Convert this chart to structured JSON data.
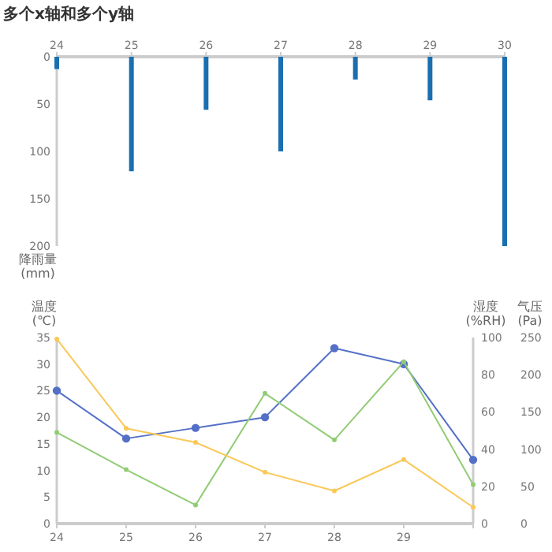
{
  "chart_data": [
    {
      "type": "bar",
      "title": "多个x轴和多个y轴",
      "x": [
        24,
        25,
        26,
        27,
        28,
        29,
        30
      ],
      "values": [
        13,
        121,
        56,
        100,
        24,
        46,
        200
      ],
      "color": "#1a6fb0",
      "xlim": [
        24,
        30
      ],
      "xticks": [
        24,
        25,
        26,
        27,
        28,
        29,
        30
      ],
      "ylim": [
        200,
        0
      ],
      "yticks": [
        0,
        50,
        100,
        150,
        200
      ],
      "ylabel": "降雨量\n(mm)"
    },
    {
      "type": "line",
      "x": [
        24,
        25,
        26,
        27,
        28,
        29,
        30
      ],
      "marker": "circle",
      "xlim": [
        24,
        30
      ],
      "xticks": [
        24,
        25,
        26,
        27,
        28,
        29,
        {
          "value": 30,
          "label": null
        }
      ],
      "ylim": [
        0,
        35
      ],
      "yticks": [
        0,
        5,
        10,
        15,
        20,
        25,
        30,
        35
      ],
      "y2lim": [
        0,
        100
      ],
      "y2ticks": [
        0,
        20,
        40,
        60,
        80,
        100
      ],
      "y3lim": [
        0,
        250
      ],
      "y3ticks": [
        0,
        50,
        100,
        150,
        200,
        250
      ],
      "ylabel": "温度\n(℃)",
      "y2label": "湿度\n(%RH)",
      "y3label": "气压\n(Pa)",
      "series": [
        {
          "color": "#5470c6",
          "axis": "y",
          "values": [
            25,
            16,
            18,
            20,
            33,
            30,
            12
          ]
        },
        {
          "color": "#91cc75",
          "axis": "y2",
          "values": [
            49,
            29,
            10,
            70,
            45,
            87,
            21
          ]
        },
        {
          "color": "#fac858",
          "axis": "y3",
          "values": [
            248,
            128,
            109,
            69,
            44,
            86,
            22
          ]
        }
      ]
    }
  ]
}
